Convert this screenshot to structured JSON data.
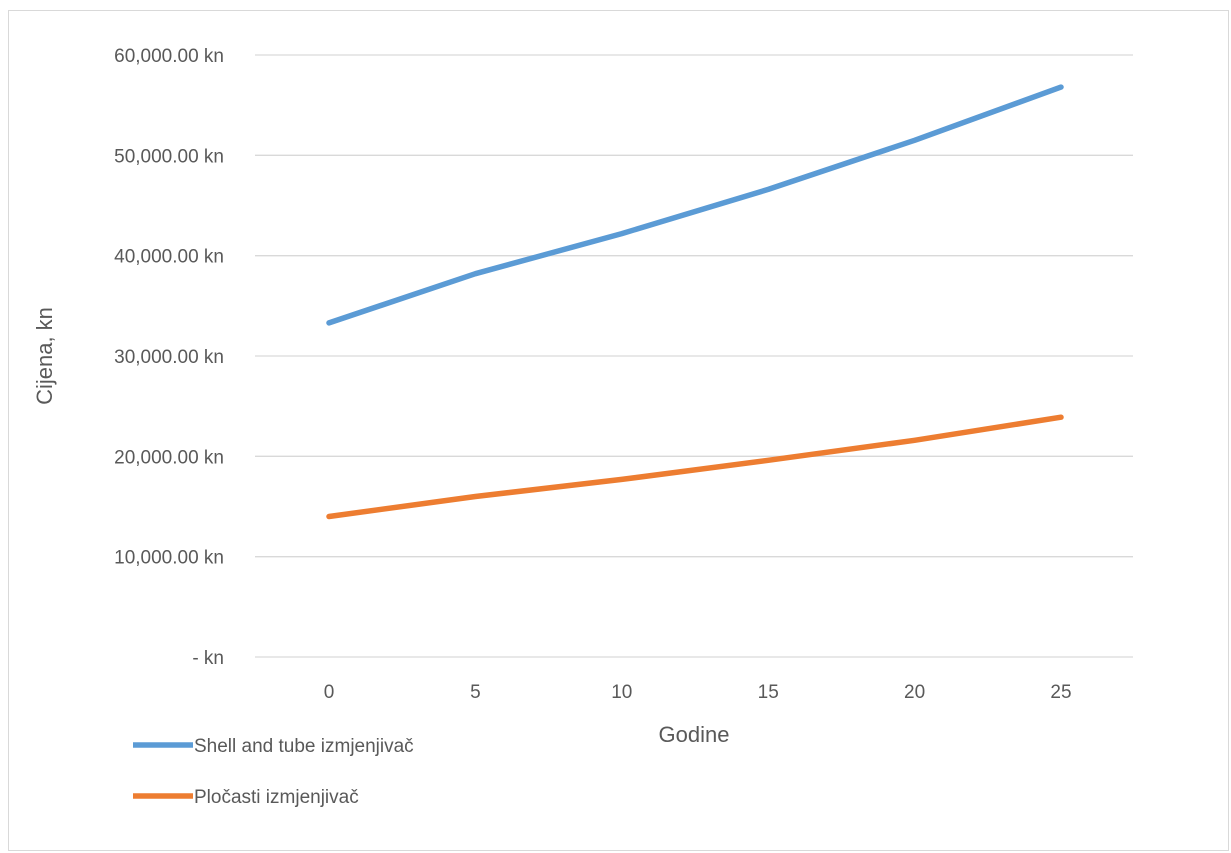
{
  "chart_data": {
    "type": "line",
    "x": [
      0,
      5,
      10,
      15,
      20,
      25
    ],
    "x_tick_labels": [
      "0",
      "5",
      "10",
      "15",
      "20",
      "25"
    ],
    "xlabel": "Godine",
    "ylabel": "Cijena, kn",
    "ylim": [
      0,
      60000
    ],
    "y_ticks": [
      0,
      10000,
      20000,
      30000,
      40000,
      50000,
      60000
    ],
    "y_tick_labels": [
      "-   kn",
      "10,000.00 kn",
      "20,000.00 kn",
      "30,000.00 kn",
      "40,000.00 kn",
      "50,000.00 kn",
      "60,000.00 kn"
    ],
    "grid": true,
    "legend_position": "bottom-left",
    "series": [
      {
        "name": "Shell and tube izmjenjivač",
        "color": "#5b9bd5",
        "values": [
          33300,
          38200,
          42200,
          46600,
          51500,
          56800
        ]
      },
      {
        "name": "Pločasti izmjenjivač",
        "color": "#ed7d31",
        "values": [
          14000,
          16000,
          17700,
          19600,
          21600,
          23900
        ]
      }
    ]
  }
}
